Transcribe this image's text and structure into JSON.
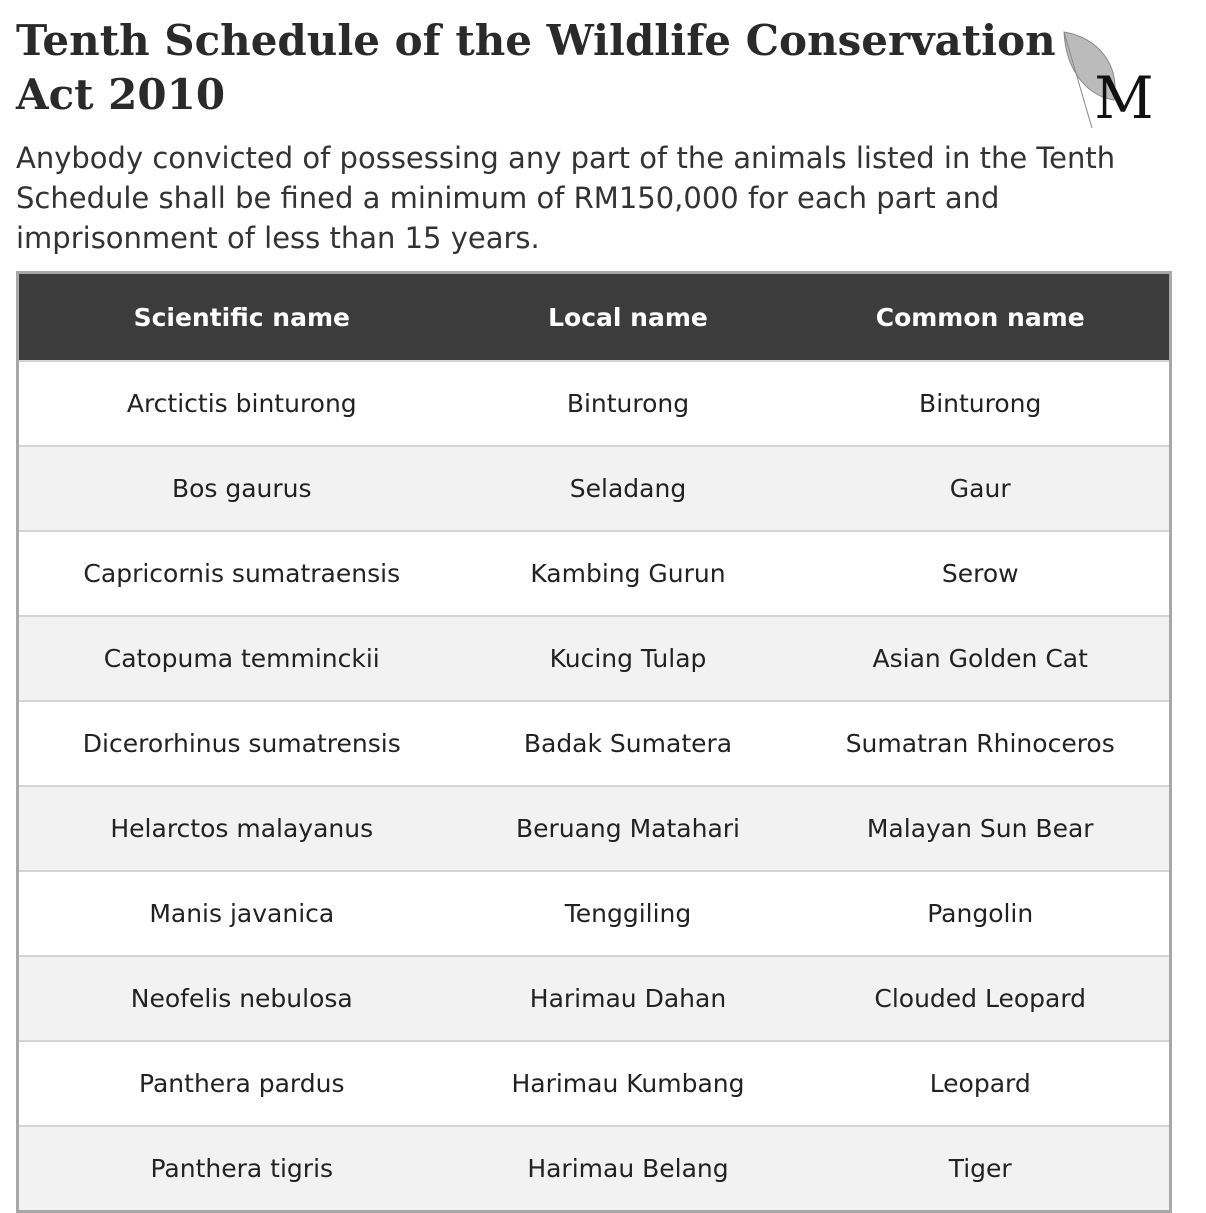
{
  "header": {
    "title": "Tenth Schedule of the Wildlife Conservation Act 2010",
    "logo": "M",
    "subtitle": "Anybody convicted of possessing any part of the animals listed in the Tenth Schedule shall be fined a minimum of RM150,000 for each part and imprisonment of less than 15 years."
  },
  "table": {
    "columns": [
      "Scientific name",
      "Local name",
      "Common name"
    ],
    "rows": [
      [
        "Arctictis binturong",
        "Binturong",
        "Binturong"
      ],
      [
        "Bos gaurus",
        "Seladang",
        "Gaur"
      ],
      [
        "Capricornis sumatraensis",
        "Kambing Gurun",
        "Serow"
      ],
      [
        "Catopuma temminckii",
        "Kucing Tulap",
        "Asian Golden Cat"
      ],
      [
        "Dicerorhinus sumatrensis",
        "Badak Sumatera",
        "Sumatran Rhinoceros"
      ],
      [
        "Helarctos malayanus",
        "Beruang Matahari",
        "Malayan Sun Bear"
      ],
      [
        "Manis javanica",
        "Tenggiling",
        "Pangolin"
      ],
      [
        "Neofelis nebulosa",
        "Harimau Dahan",
        "Clouded Leopard"
      ],
      [
        "Panthera pardus",
        "Harimau Kumbang",
        "Leopard"
      ],
      [
        "Panthera tigris",
        "Harimau Belang",
        "Tiger"
      ]
    ]
  }
}
